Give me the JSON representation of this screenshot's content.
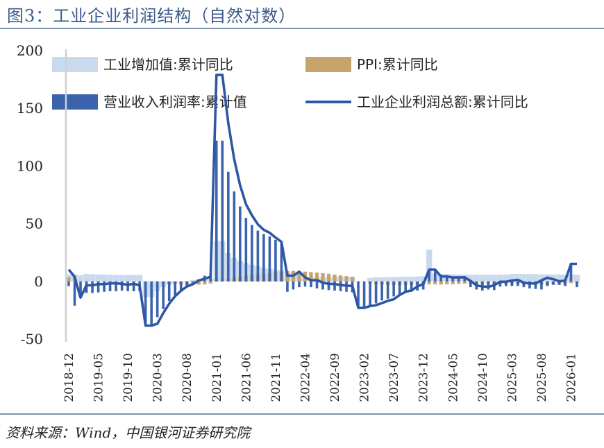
{
  "header": {
    "title": "图3：工业企业利润结构（自然对数）"
  },
  "footer": {
    "source": "资料来源：Wind，中国银河证券研究院"
  },
  "colors": {
    "industrial_value_added": "#c9d9ee",
    "ppi": "#c8a46d",
    "revenue_margin": "#3a62ad",
    "profit_total": "#2e56a6",
    "rule": "#7f93b2",
    "title": "#3c5a8a"
  },
  "chart_data": {
    "type": "bar",
    "title": "",
    "xlabel": "",
    "ylabel": "",
    "ylim": [
      -50,
      200
    ],
    "y_ticks": [
      "200",
      "150",
      "100",
      "50",
      "0",
      "-50"
    ],
    "y_tick_values": [
      200,
      150,
      100,
      50,
      0,
      -50
    ],
    "x_tick_labels": [
      "2018-12",
      "2019-05",
      "2019-10",
      "2020-03",
      "2020-08",
      "2021-01",
      "2021-06",
      "2021-11",
      "2022-04",
      "2022-09",
      "2023-02",
      "2023-07",
      "2023-12",
      "2024-05",
      "2024-10",
      "2025-03",
      "2025-08",
      "2026-01"
    ],
    "legend": [
      {
        "name": "工业增加值:累计同比",
        "kind": "area"
      },
      {
        "name": "PPI:累计同比",
        "kind": "area"
      },
      {
        "name": "营业收入利润率:累计值",
        "kind": "bar"
      },
      {
        "name": "工业企业利润总额:累计同比",
        "kind": "line"
      }
    ],
    "categories": [
      "2018-12",
      "2019-01",
      "2019-02",
      "2019-03",
      "2019-04",
      "2019-05",
      "2019-06",
      "2019-07",
      "2019-08",
      "2019-09",
      "2019-10",
      "2019-11",
      "2019-12",
      "2020-01",
      "2020-02",
      "2020-03",
      "2020-04",
      "2020-05",
      "2020-06",
      "2020-07",
      "2020-08",
      "2020-09",
      "2020-10",
      "2020-11",
      "2020-12",
      "2021-01",
      "2021-02",
      "2021-03",
      "2021-04",
      "2021-05",
      "2021-06",
      "2021-07",
      "2021-08",
      "2021-09",
      "2021-10",
      "2021-11",
      "2021-12",
      "2022-01",
      "2022-02",
      "2022-03",
      "2022-04",
      "2022-05",
      "2022-06",
      "2022-07",
      "2022-08",
      "2022-09",
      "2022-10",
      "2022-11",
      "2022-12",
      "2023-01",
      "2023-02",
      "2023-03",
      "2023-04",
      "2023-05",
      "2023-06",
      "2023-07",
      "2023-08",
      "2023-09",
      "2023-10",
      "2023-11",
      "2023-12",
      "2024-01",
      "2024-02",
      "2024-03",
      "2024-04",
      "2024-05",
      "2024-06",
      "2024-07",
      "2024-08",
      "2024-09",
      "2024-10",
      "2024-11",
      "2024-12",
      "2025-01",
      "2025-02",
      "2025-03",
      "2025-04",
      "2025-05",
      "2025-06",
      "2025-07",
      "2025-08",
      "2025-09",
      "2025-10",
      "2025-11",
      "2025-12",
      "2026-01",
      "2026-02"
    ],
    "series": [
      {
        "name": "工业增加值:累计同比",
        "type": "area",
        "values": [
          6.2,
          6.2,
          5.3,
          6.5,
          6.2,
          6.0,
          6.0,
          5.8,
          5.6,
          5.6,
          5.6,
          5.6,
          5.7,
          -13.5,
          -13.5,
          -8.4,
          -4.9,
          -2.8,
          -1.3,
          -0.4,
          0.4,
          1.2,
          1.8,
          2.3,
          2.8,
          35.1,
          35.1,
          24.5,
          20.3,
          17.8,
          15.9,
          14.4,
          13.1,
          11.8,
          10.9,
          10.1,
          9.6,
          7.5,
          7.5,
          6.5,
          4.0,
          3.3,
          3.4,
          3.5,
          3.6,
          3.9,
          4.0,
          3.8,
          3.6,
          -0.2,
          -0.2,
          3.0,
          3.6,
          3.6,
          3.8,
          3.7,
          3.9,
          4.0,
          4.1,
          4.3,
          4.6,
          27.6,
          7.0,
          6.1,
          6.3,
          6.2,
          6.0,
          5.9,
          5.8,
          5.8,
          5.8,
          5.8,
          5.8,
          5.9,
          5.9,
          6.5,
          6.4,
          6.3,
          6.4,
          6.3,
          6.2,
          6.2,
          6.1,
          6.0,
          5.9,
          5.8,
          5.8
        ]
      },
      {
        "name": "PPI:累计同比",
        "type": "area",
        "values": [
          3.5,
          3.5,
          0.1,
          0.2,
          0.3,
          0.4,
          0.3,
          0.1,
          -0.1,
          -0.3,
          -0.5,
          -0.6,
          -0.3,
          -0.1,
          -0.1,
          -0.6,
          -1.5,
          -2.2,
          -2.6,
          -2.7,
          -2.8,
          -2.8,
          -2.8,
          -2.6,
          -1.8,
          1.7,
          1.7,
          2.1,
          3.4,
          4.4,
          5.1,
          5.7,
          6.2,
          6.7,
          7.3,
          7.9,
          8.1,
          9.1,
          9.1,
          8.7,
          8.5,
          8.1,
          7.7,
          7.2,
          6.6,
          5.9,
          5.2,
          4.6,
          4.1,
          -0.4,
          -0.4,
          -1.6,
          -2.3,
          -2.8,
          -3.1,
          -3.2,
          -3.2,
          -3.1,
          -3.0,
          -3.0,
          -3.0,
          -2.5,
          -2.5,
          -2.7,
          -2.5,
          -2.4,
          -2.1,
          -1.9,
          -1.9,
          -1.9,
          -1.9,
          -2.0,
          -2.2,
          -2.3,
          -2.3,
          -2.3,
          -2.4,
          -2.5,
          -2.8,
          -2.8,
          -2.8,
          -2.8,
          -2.7,
          -2.7,
          -2.6,
          -1.5,
          -1.4
        ]
      },
      {
        "name": "营业收入利润率:累计值",
        "type": "bar",
        "values": [
          -4.0,
          -21.0,
          -13.0,
          -10.0,
          -10.0,
          -9.5,
          -9.0,
          -8.5,
          -8.5,
          -8.0,
          -8.5,
          -8.5,
          -8.5,
          -38.0,
          -39.0,
          -31.0,
          -24.0,
          -17.0,
          -12.0,
          -8.0,
          -4.0,
          -1.0,
          2.0,
          5.0,
          5.5,
          122.0,
          122.0,
          95.0,
          78.0,
          65.0,
          55.0,
          49.0,
          44.0,
          41.0,
          39.0,
          36.0,
          34.0,
          -9.0,
          -7.0,
          -5.0,
          -4.5,
          -5.0,
          -6.0,
          -7.0,
          -7.5,
          -8.0,
          -8.5,
          -9.0,
          -9.5,
          -23.0,
          -23.0,
          -21.0,
          -19.0,
          -16.5,
          -15.0,
          -13.0,
          -11.0,
          -10.0,
          -9.0,
          -8.0,
          -7.0,
          10.0,
          10.0,
          6.0,
          4.5,
          3.5,
          3.5,
          3.0,
          -5.0,
          -7.0,
          -8.0,
          -7.0,
          -7.5,
          -4.5,
          -4.0,
          -4.0,
          -4.0,
          -5.0,
          -6.0,
          -6.5,
          -7.0,
          -4.0,
          -3.0,
          -3.0,
          -4.0,
          16.0,
          -5.0
        ]
      },
      {
        "name": "工业企业利润总额:累计同比",
        "type": "line",
        "values": [
          10.3,
          4.0,
          -14.0,
          -3.3,
          -3.4,
          -2.3,
          -2.4,
          -1.7,
          -1.7,
          -2.1,
          -2.9,
          -2.1,
          -3.3,
          -38.3,
          -38.3,
          -36.7,
          -27.4,
          -19.3,
          -12.8,
          -8.1,
          -4.4,
          -2.4,
          0.7,
          2.4,
          4.1,
          178.9,
          178.9,
          137.3,
          106.0,
          83.4,
          66.9,
          57.3,
          49.5,
          44.7,
          42.2,
          38.0,
          34.3,
          5.0,
          5.0,
          8.5,
          3.5,
          1.0,
          1.0,
          -1.1,
          -2.1,
          -2.3,
          -3.0,
          -3.6,
          -4.0,
          -22.9,
          -22.9,
          -21.4,
          -20.6,
          -18.8,
          -16.8,
          -15.5,
          -11.7,
          -9.0,
          -7.8,
          -4.4,
          -2.3,
          10.2,
          10.2,
          4.3,
          4.3,
          3.4,
          3.5,
          3.6,
          0.5,
          -3.5,
          -4.3,
          -4.7,
          -3.3,
          -0.3,
          -0.3,
          0.8,
          1.4,
          -1.1,
          -1.8,
          -1.7,
          0.9,
          3.2,
          1.9,
          0.1,
          0.6,
          15.2,
          15.2
        ]
      }
    ]
  }
}
